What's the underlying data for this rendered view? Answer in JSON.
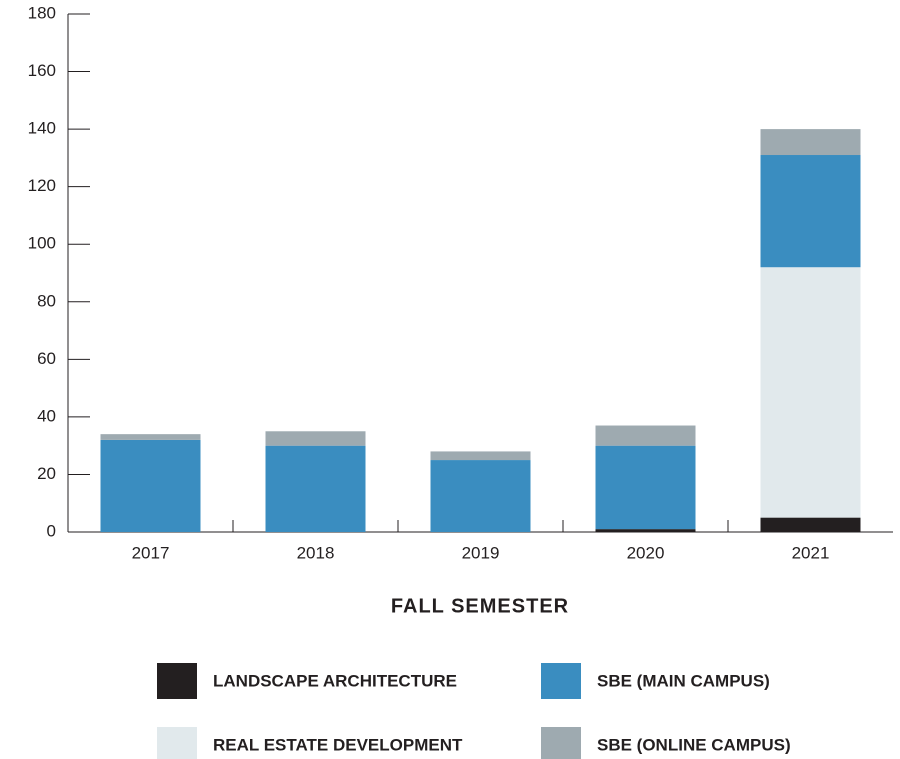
{
  "chart_data": {
    "type": "bar",
    "stacked": true,
    "x_label": "FALL SEMESTER",
    "categories": [
      "2017",
      "2018",
      "2019",
      "2020",
      "2021"
    ],
    "series": [
      {
        "name": "LANDSCAPE ARCHITECTURE",
        "color": "#231f20",
        "values": [
          0,
          0,
          0,
          1,
          5
        ]
      },
      {
        "name": "REAL ESTATE DEVELOPMENT",
        "color": "#e1e9ec",
        "values": [
          0,
          0,
          0,
          0,
          87
        ]
      },
      {
        "name": "SBE (MAIN CAMPUS)",
        "color": "#3a8dc0",
        "values": [
          32,
          30,
          25,
          29,
          39
        ]
      },
      {
        "name": "SBE (ONLINE CAMPUS)",
        "color": "#9eaab0",
        "values": [
          2,
          5,
          3,
          7,
          9
        ]
      }
    ],
    "ylim": [
      0,
      180
    ],
    "yticks": [
      0,
      20,
      40,
      60,
      80,
      100,
      120,
      140,
      160,
      180
    ]
  }
}
